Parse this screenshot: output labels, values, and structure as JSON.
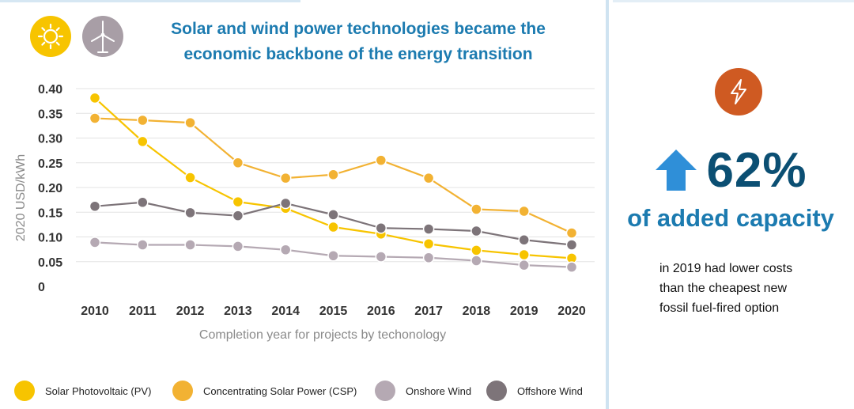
{
  "header": {
    "title_line1": "Solar and wind power technologies became the",
    "title_line2": "economic backbone of the energy transition",
    "icons": [
      "sun-icon",
      "wind-turbine-icon"
    ]
  },
  "chart_data": {
    "type": "line",
    "title": "Solar and wind power technologies became the economic backbone of the energy transition",
    "xlabel": "Completion year for projects by techonology",
    "ylabel": "2020 USD/kWh",
    "ylim": [
      0,
      0.4
    ],
    "yticks": [
      "0",
      "0.05",
      "0.10",
      "0.15",
      "0.20",
      "0.25",
      "0.30",
      "0.35",
      "0.40"
    ],
    "categories": [
      "2010",
      "2011",
      "2012",
      "2013",
      "2014",
      "2015",
      "2016",
      "2017",
      "2018",
      "2019",
      "2020"
    ],
    "grid": true,
    "legend_position": "bottom",
    "series": [
      {
        "name": "Solar Photovoltaic (PV)",
        "color": "#f7c400",
        "values": [
          0.381,
          0.293,
          0.22,
          0.171,
          0.158,
          0.12,
          0.106,
          0.086,
          0.073,
          0.064,
          0.057
        ]
      },
      {
        "name": "Concentrating Solar Power (CSP)",
        "color": "#f2b233",
        "values": [
          0.34,
          0.336,
          0.331,
          0.25,
          0.219,
          0.226,
          0.255,
          0.219,
          0.156,
          0.152,
          0.108
        ]
      },
      {
        "name": "Onshore Wind",
        "color": "#b5a9b3",
        "values": [
          0.089,
          0.084,
          0.084,
          0.081,
          0.074,
          0.062,
          0.06,
          0.058,
          0.052,
          0.043,
          0.039
        ]
      },
      {
        "name": "Offshore Wind",
        "color": "#7d7479",
        "values": [
          0.162,
          0.17,
          0.149,
          0.143,
          0.168,
          0.145,
          0.118,
          0.116,
          0.112,
          0.094,
          0.084
        ]
      }
    ]
  },
  "sidebar": {
    "icon": "lightning-bolt-icon",
    "arrow_icon": "up-arrow-icon",
    "stat_value": "62%",
    "stat_label": "of added capacity",
    "description_lines": [
      "in 2019 had lower costs",
      "than the cheapest new",
      "fossil fuel-fired option"
    ],
    "colors": {
      "accent": "#1c7bb0",
      "dark": "#0b4f73",
      "bolt": "#cf5a22",
      "arrow": "#2f8fd8"
    }
  }
}
